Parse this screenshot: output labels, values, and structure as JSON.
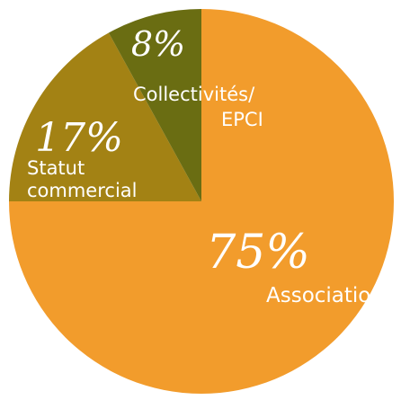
{
  "chart_data": {
    "type": "pie",
    "slices": [
      {
        "label_lines": [
          "Associations"
        ],
        "percent_label": "75%",
        "value": 75,
        "color": "#f29c2c"
      },
      {
        "label_lines": [
          "Statut",
          "commercial"
        ],
        "percent_label": "17%",
        "value": 17,
        "color": "#a38214"
      },
      {
        "label_lines": [
          "Collectivités/",
          "EPCI"
        ],
        "percent_label": "8%",
        "value": 8,
        "color": "#6a6d12"
      }
    ],
    "label_color": "#ffffff"
  }
}
